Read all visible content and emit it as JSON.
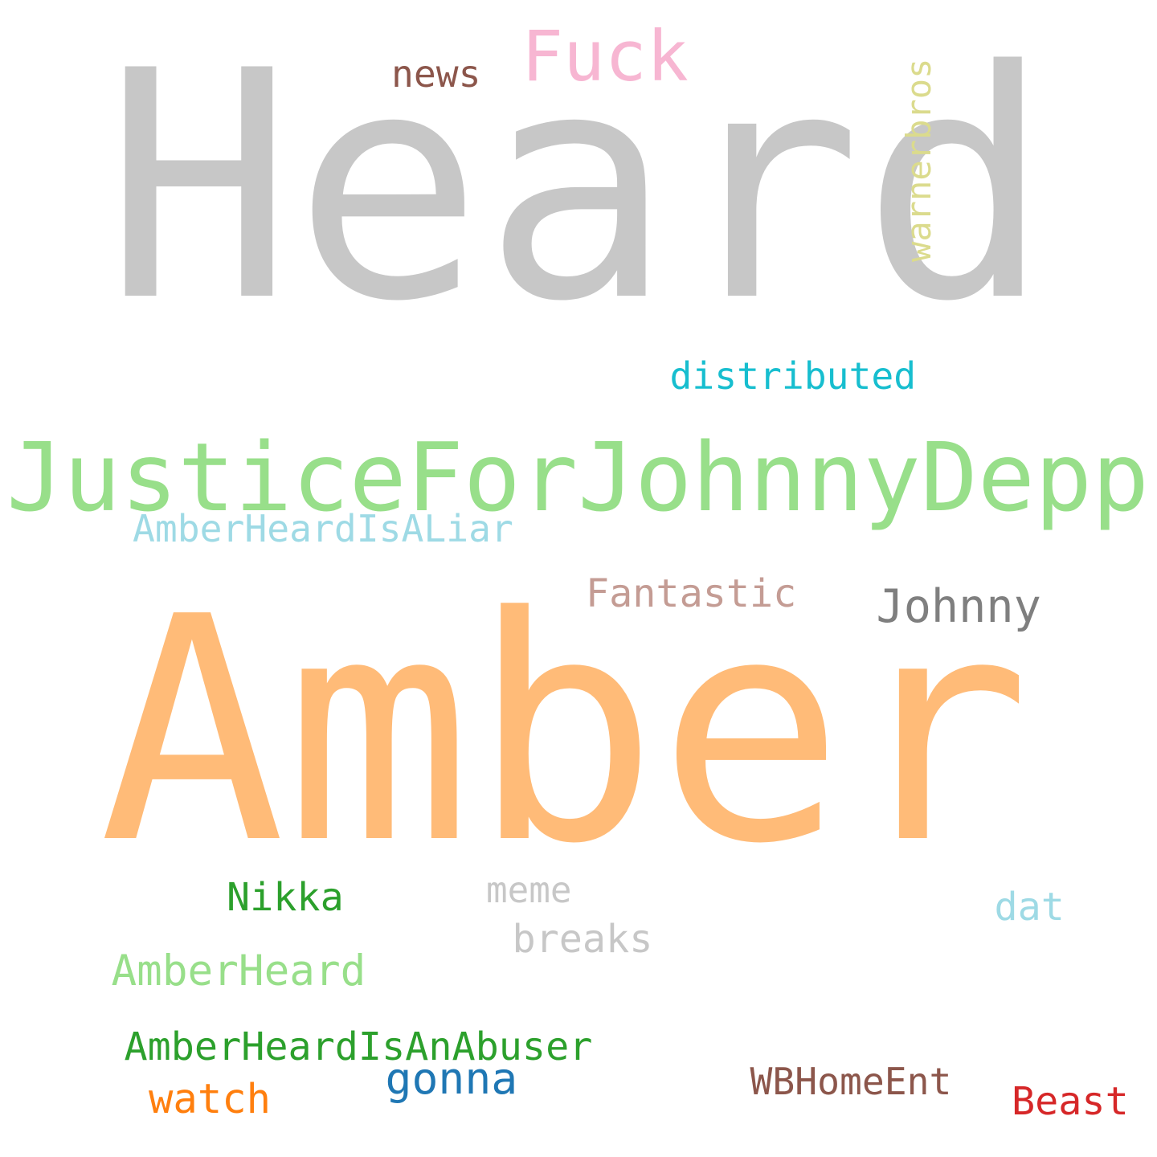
{
  "words": [
    {
      "key": "heard",
      "text": "Heard",
      "color": "#c7c7c7"
    },
    {
      "key": "amber",
      "text": "Amber",
      "color": "#ffbb78"
    },
    {
      "key": "justice",
      "text": "JusticeForJohnnyDepp",
      "color": "#98df8a"
    },
    {
      "key": "fuck",
      "text": "Fuck",
      "color": "#f7b6d2"
    },
    {
      "key": "news",
      "text": "news",
      "color": "#8c564b"
    },
    {
      "key": "warnerbros",
      "text": "warnerbros",
      "color": "#dbdb8d"
    },
    {
      "key": "distributed",
      "text": "distributed",
      "color": "#17becf"
    },
    {
      "key": "liar",
      "text": "AmberHeardIsALiar",
      "color": "#9edae5"
    },
    {
      "key": "fantastic",
      "text": "Fantastic",
      "color": "#c49c94"
    },
    {
      "key": "johnny",
      "text": "Johnny",
      "color": "#7f7f7f"
    },
    {
      "key": "nikka",
      "text": "Nikka",
      "color": "#2ca02c"
    },
    {
      "key": "meme",
      "text": "meme",
      "color": "#c7c7c7"
    },
    {
      "key": "breaks",
      "text": "breaks",
      "color": "#c7c7c7"
    },
    {
      "key": "dat",
      "text": "dat",
      "color": "#9edae5"
    },
    {
      "key": "amberheard",
      "text": "AmberHeard",
      "color": "#98df8a"
    },
    {
      "key": "abuser",
      "text": "AmberHeardIsAnAbuser",
      "color": "#2ca02c"
    },
    {
      "key": "gonna",
      "text": "gonna",
      "color": "#1f77b4"
    },
    {
      "key": "watch",
      "text": "watch",
      "color": "#ff7f0e"
    },
    {
      "key": "wbhomeent",
      "text": "WBHomeEnt",
      "color": "#8c564b"
    },
    {
      "key": "beast",
      "text": "Beast",
      "color": "#d62728"
    }
  ]
}
